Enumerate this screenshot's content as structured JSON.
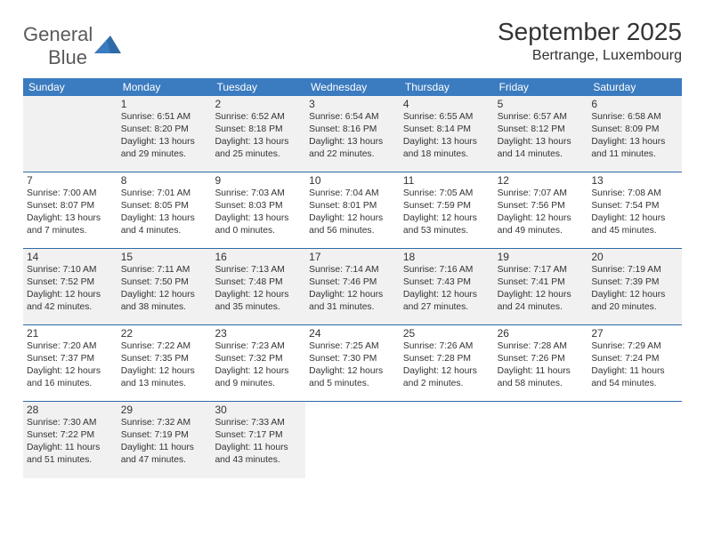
{
  "logo": {
    "text1": "General",
    "text2": "Blue"
  },
  "title": "September 2025",
  "location": "Bertrange, Luxembourg",
  "colors": {
    "header_bg": "#3b7bbf",
    "border": "#2f6aa8",
    "shade": "#f1f1f1",
    "text": "#333333",
    "logo_gray": "#5a5a5a",
    "logo_blue": "#3b7bbf"
  },
  "day_headers": [
    "Sunday",
    "Monday",
    "Tuesday",
    "Wednesday",
    "Thursday",
    "Friday",
    "Saturday"
  ],
  "weeks": [
    [
      {
        "num": "",
        "shade": true,
        "sunrise": "",
        "sunset": "",
        "daylight": ""
      },
      {
        "num": "1",
        "shade": true,
        "sunrise": "Sunrise: 6:51 AM",
        "sunset": "Sunset: 8:20 PM",
        "daylight": "Daylight: 13 hours and 29 minutes."
      },
      {
        "num": "2",
        "shade": true,
        "sunrise": "Sunrise: 6:52 AM",
        "sunset": "Sunset: 8:18 PM",
        "daylight": "Daylight: 13 hours and 25 minutes."
      },
      {
        "num": "3",
        "shade": true,
        "sunrise": "Sunrise: 6:54 AM",
        "sunset": "Sunset: 8:16 PM",
        "daylight": "Daylight: 13 hours and 22 minutes."
      },
      {
        "num": "4",
        "shade": true,
        "sunrise": "Sunrise: 6:55 AM",
        "sunset": "Sunset: 8:14 PM",
        "daylight": "Daylight: 13 hours and 18 minutes."
      },
      {
        "num": "5",
        "shade": true,
        "sunrise": "Sunrise: 6:57 AM",
        "sunset": "Sunset: 8:12 PM",
        "daylight": "Daylight: 13 hours and 14 minutes."
      },
      {
        "num": "6",
        "shade": true,
        "sunrise": "Sunrise: 6:58 AM",
        "sunset": "Sunset: 8:09 PM",
        "daylight": "Daylight: 13 hours and 11 minutes."
      }
    ],
    [
      {
        "num": "7",
        "shade": false,
        "sunrise": "Sunrise: 7:00 AM",
        "sunset": "Sunset: 8:07 PM",
        "daylight": "Daylight: 13 hours and 7 minutes."
      },
      {
        "num": "8",
        "shade": false,
        "sunrise": "Sunrise: 7:01 AM",
        "sunset": "Sunset: 8:05 PM",
        "daylight": "Daylight: 13 hours and 4 minutes."
      },
      {
        "num": "9",
        "shade": false,
        "sunrise": "Sunrise: 7:03 AM",
        "sunset": "Sunset: 8:03 PM",
        "daylight": "Daylight: 13 hours and 0 minutes."
      },
      {
        "num": "10",
        "shade": false,
        "sunrise": "Sunrise: 7:04 AM",
        "sunset": "Sunset: 8:01 PM",
        "daylight": "Daylight: 12 hours and 56 minutes."
      },
      {
        "num": "11",
        "shade": false,
        "sunrise": "Sunrise: 7:05 AM",
        "sunset": "Sunset: 7:59 PM",
        "daylight": "Daylight: 12 hours and 53 minutes."
      },
      {
        "num": "12",
        "shade": false,
        "sunrise": "Sunrise: 7:07 AM",
        "sunset": "Sunset: 7:56 PM",
        "daylight": "Daylight: 12 hours and 49 minutes."
      },
      {
        "num": "13",
        "shade": false,
        "sunrise": "Sunrise: 7:08 AM",
        "sunset": "Sunset: 7:54 PM",
        "daylight": "Daylight: 12 hours and 45 minutes."
      }
    ],
    [
      {
        "num": "14",
        "shade": true,
        "sunrise": "Sunrise: 7:10 AM",
        "sunset": "Sunset: 7:52 PM",
        "daylight": "Daylight: 12 hours and 42 minutes."
      },
      {
        "num": "15",
        "shade": true,
        "sunrise": "Sunrise: 7:11 AM",
        "sunset": "Sunset: 7:50 PM",
        "daylight": "Daylight: 12 hours and 38 minutes."
      },
      {
        "num": "16",
        "shade": true,
        "sunrise": "Sunrise: 7:13 AM",
        "sunset": "Sunset: 7:48 PM",
        "daylight": "Daylight: 12 hours and 35 minutes."
      },
      {
        "num": "17",
        "shade": true,
        "sunrise": "Sunrise: 7:14 AM",
        "sunset": "Sunset: 7:46 PM",
        "daylight": "Daylight: 12 hours and 31 minutes."
      },
      {
        "num": "18",
        "shade": true,
        "sunrise": "Sunrise: 7:16 AM",
        "sunset": "Sunset: 7:43 PM",
        "daylight": "Daylight: 12 hours and 27 minutes."
      },
      {
        "num": "19",
        "shade": true,
        "sunrise": "Sunrise: 7:17 AM",
        "sunset": "Sunset: 7:41 PM",
        "daylight": "Daylight: 12 hours and 24 minutes."
      },
      {
        "num": "20",
        "shade": true,
        "sunrise": "Sunrise: 7:19 AM",
        "sunset": "Sunset: 7:39 PM",
        "daylight": "Daylight: 12 hours and 20 minutes."
      }
    ],
    [
      {
        "num": "21",
        "shade": false,
        "sunrise": "Sunrise: 7:20 AM",
        "sunset": "Sunset: 7:37 PM",
        "daylight": "Daylight: 12 hours and 16 minutes."
      },
      {
        "num": "22",
        "shade": false,
        "sunrise": "Sunrise: 7:22 AM",
        "sunset": "Sunset: 7:35 PM",
        "daylight": "Daylight: 12 hours and 13 minutes."
      },
      {
        "num": "23",
        "shade": false,
        "sunrise": "Sunrise: 7:23 AM",
        "sunset": "Sunset: 7:32 PM",
        "daylight": "Daylight: 12 hours and 9 minutes."
      },
      {
        "num": "24",
        "shade": false,
        "sunrise": "Sunrise: 7:25 AM",
        "sunset": "Sunset: 7:30 PM",
        "daylight": "Daylight: 12 hours and 5 minutes."
      },
      {
        "num": "25",
        "shade": false,
        "sunrise": "Sunrise: 7:26 AM",
        "sunset": "Sunset: 7:28 PM",
        "daylight": "Daylight: 12 hours and 2 minutes."
      },
      {
        "num": "26",
        "shade": false,
        "sunrise": "Sunrise: 7:28 AM",
        "sunset": "Sunset: 7:26 PM",
        "daylight": "Daylight: 11 hours and 58 minutes."
      },
      {
        "num": "27",
        "shade": false,
        "sunrise": "Sunrise: 7:29 AM",
        "sunset": "Sunset: 7:24 PM",
        "daylight": "Daylight: 11 hours and 54 minutes."
      }
    ],
    [
      {
        "num": "28",
        "shade": true,
        "sunrise": "Sunrise: 7:30 AM",
        "sunset": "Sunset: 7:22 PM",
        "daylight": "Daylight: 11 hours and 51 minutes."
      },
      {
        "num": "29",
        "shade": true,
        "sunrise": "Sunrise: 7:32 AM",
        "sunset": "Sunset: 7:19 PM",
        "daylight": "Daylight: 11 hours and 47 minutes."
      },
      {
        "num": "30",
        "shade": true,
        "sunrise": "Sunrise: 7:33 AM",
        "sunset": "Sunset: 7:17 PM",
        "daylight": "Daylight: 11 hours and 43 minutes."
      },
      {
        "num": "",
        "shade": false,
        "sunrise": "",
        "sunset": "",
        "daylight": ""
      },
      {
        "num": "",
        "shade": false,
        "sunrise": "",
        "sunset": "",
        "daylight": ""
      },
      {
        "num": "",
        "shade": false,
        "sunrise": "",
        "sunset": "",
        "daylight": ""
      },
      {
        "num": "",
        "shade": false,
        "sunrise": "",
        "sunset": "",
        "daylight": ""
      }
    ]
  ]
}
